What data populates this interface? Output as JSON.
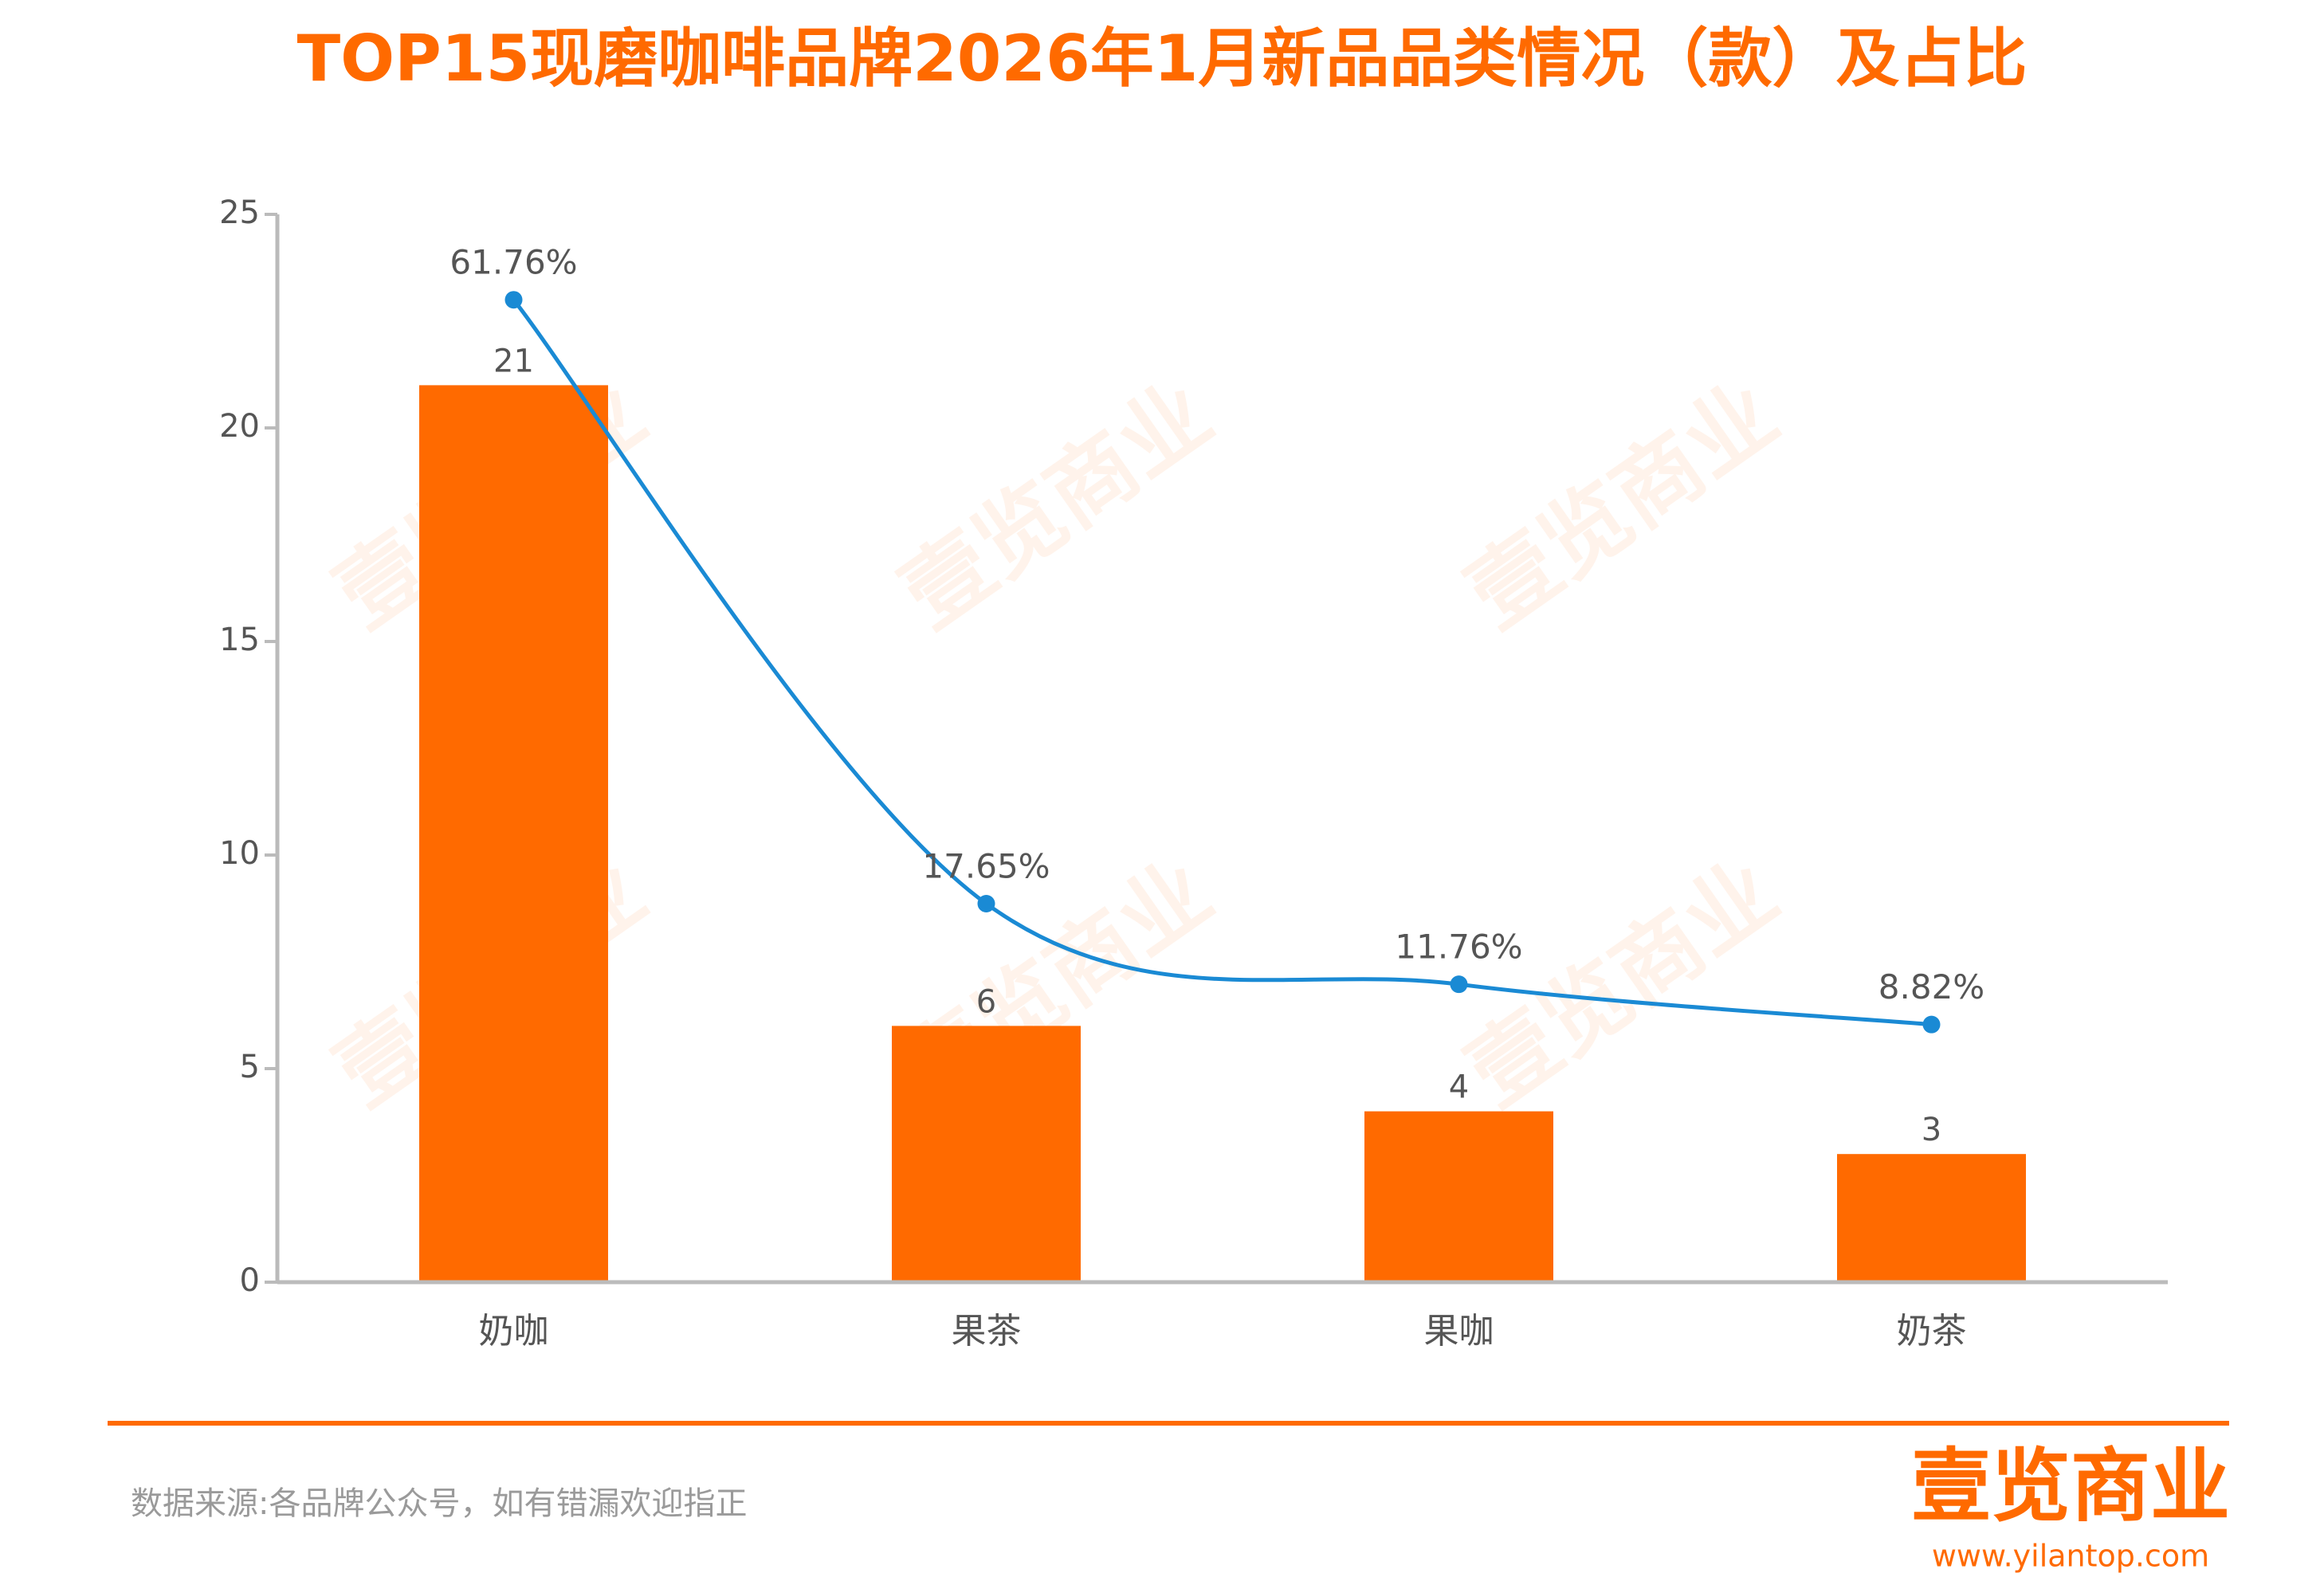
{
  "chart_data": {
    "type": "bar_line",
    "title": "TOP15现磨咖啡品牌2026年1月新品品类情况（款）及占比",
    "categories": [
      "奶咖",
      "果茶",
      "果咖",
      "奶茶"
    ],
    "series": [
      {
        "type": "bar",
        "color": "#ff6a00",
        "values": [
          21,
          6,
          4,
          3
        ]
      },
      {
        "type": "line",
        "color": "#1a8ad4",
        "axis": "y2",
        "values": [
          61.76,
          17.65,
          11.76,
          8.82
        ],
        "value_labels": [
          "61.76%",
          "17.65%",
          "11.76%",
          "8.82%"
        ]
      }
    ],
    "ylim": [
      0,
      25
    ],
    "yticks": [
      0,
      5,
      10,
      15,
      20,
      25
    ],
    "y2lim": [
      -10,
      68
    ],
    "source": "数据来源:各品牌公众号，如有错漏欢迎指正",
    "logo": "壹览商业",
    "website": "www.yilantop.com",
    "watermark": "壹览商业"
  }
}
